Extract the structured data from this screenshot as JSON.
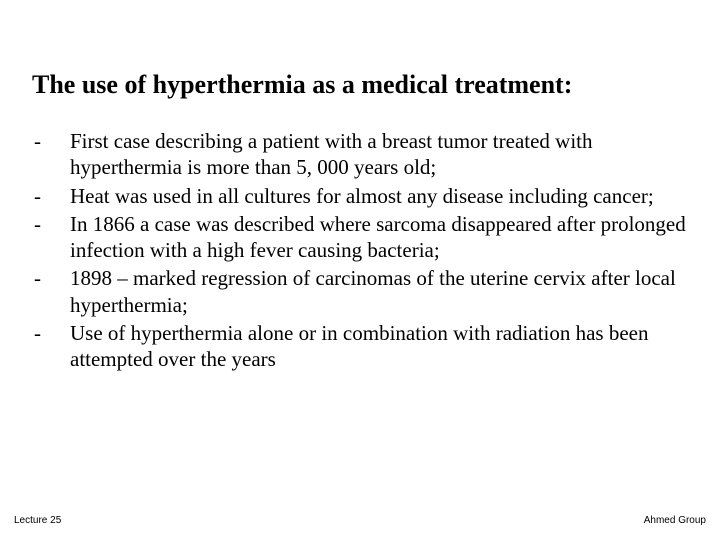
{
  "slide": {
    "title": "The use of hyperthermia as a medical treatment:",
    "bullets": [
      {
        "marker": "-",
        "text": "First case describing a patient with a breast tumor treated with hyperthermia is more than 5, 000 years old;"
      },
      {
        "marker": "-",
        "text": "Heat was used in all cultures for almost any disease including cancer;"
      },
      {
        "marker": "-",
        "text": "In 1866 a case was described where sarcoma disappeared after prolonged infection with a high fever causing bacteria;"
      },
      {
        "marker": "-",
        "text": "1898 – marked regression of carcinomas of the uterine cervix after local hyperthermia;"
      },
      {
        "marker": "-",
        "text": "Use of hyperthermia alone or in combination with radiation has been attempted over the years"
      }
    ],
    "footer_left": "Lecture 25",
    "footer_right": "Ahmed Group"
  },
  "style": {
    "background_color": "#ffffff",
    "title_fontsize": 26,
    "body_fontsize": 21,
    "footer_fontsize": 10,
    "text_color": "#000000"
  }
}
